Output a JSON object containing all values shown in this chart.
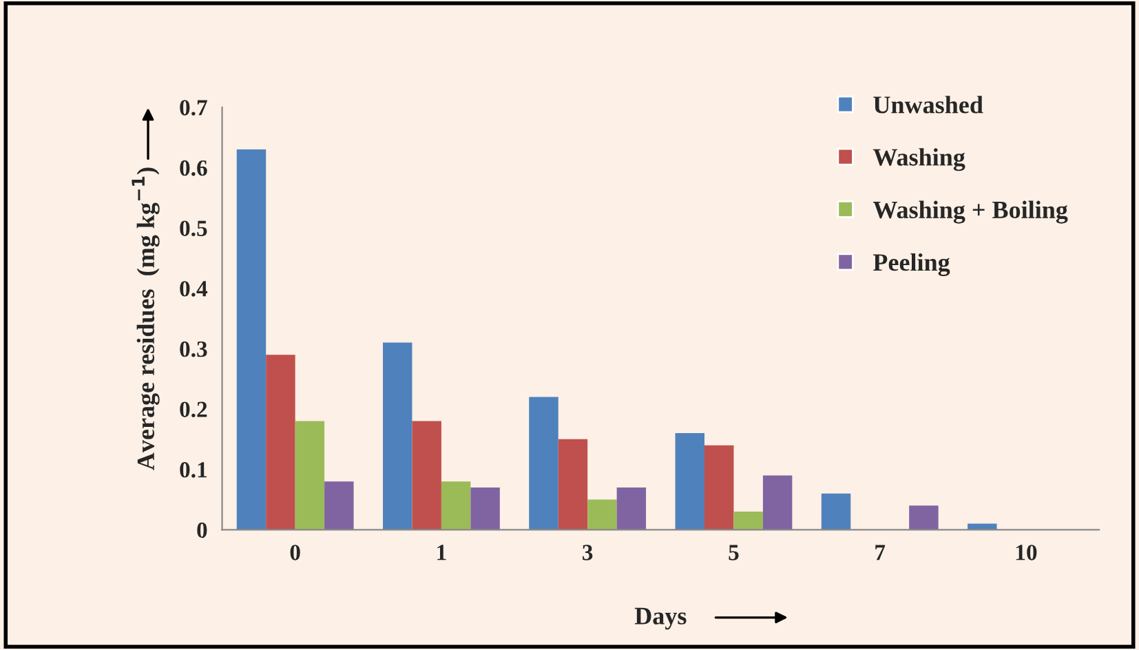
{
  "chart_data": {
    "type": "bar",
    "xlabel": "Days",
    "ylabel": "Average residues  (mg kg$^{−1}$)",
    "categories": [
      "0",
      "1",
      "3",
      "5",
      "7",
      "10"
    ],
    "series": [
      {
        "name": "Unwashed",
        "color": "#4f81bd",
        "values": [
          0.63,
          0.31,
          0.22,
          0.16,
          0.06,
          0.01
        ]
      },
      {
        "name": "Washing",
        "color": "#c0504d",
        "values": [
          0.29,
          0.18,
          0.15,
          0.14,
          null,
          null
        ]
      },
      {
        "name": "Washing + Boiling",
        "color": "#9bbb59",
        "values": [
          0.18,
          0.08,
          0.05,
          0.03,
          null,
          null
        ]
      },
      {
        "name": "Peeling",
        "color": "#8064a2",
        "values": [
          0.08,
          0.07,
          0.07,
          0.09,
          0.04,
          null
        ]
      }
    ],
    "ylim": [
      0,
      0.7
    ],
    "yticks": [
      0,
      0.1,
      0.2,
      0.3,
      0.4,
      0.5,
      0.6,
      0.7
    ],
    "grid": false,
    "legend": "top right"
  }
}
